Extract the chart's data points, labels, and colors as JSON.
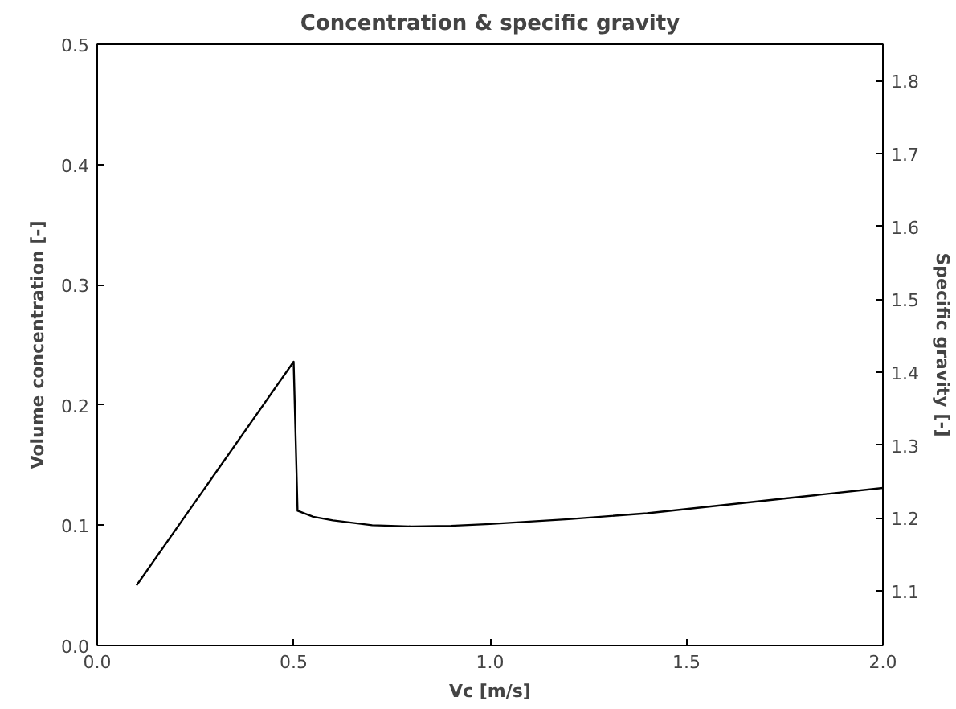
{
  "chart_data": {
    "type": "line",
    "title": "Concentration & specific gravity",
    "xlabel": "Vc [m/s]",
    "ylabel": "Volume concentration [-]",
    "y2label": "Specific gravity [-]",
    "xlim": [
      0.0,
      2.0
    ],
    "xticks": [
      {
        "value": 0,
        "label": "0.0"
      },
      0.5,
      {
        "value": 1,
        "label": "1.0"
      },
      1.5,
      {
        "value": 2,
        "label": "2.0"
      }
    ],
    "ylim": [
      0.0,
      0.5
    ],
    "yticks": [
      {
        "value": 0,
        "label": "0.0"
      },
      0.1,
      0.2,
      0.3,
      0.4,
      0.5
    ],
    "y2lim": [
      1.025,
      1.85
    ],
    "y2ticks": [
      1.1,
      1.2,
      1.3,
      1.4,
      1.5,
      1.6,
      1.7,
      1.8
    ],
    "grid": false,
    "series": [
      {
        "color": "#000000",
        "x": [
          0.1,
          0.5,
          0.51,
          0.55,
          0.6,
          0.7,
          0.8,
          0.9,
          1.0,
          1.2,
          1.4,
          1.6,
          1.8,
          2.0
        ],
        "values": [
          0.05,
          0.236,
          0.112,
          0.107,
          0.104,
          0.1,
          0.099,
          0.0995,
          0.101,
          0.105,
          0.11,
          0.117,
          0.124,
          0.131
        ]
      }
    ]
  }
}
